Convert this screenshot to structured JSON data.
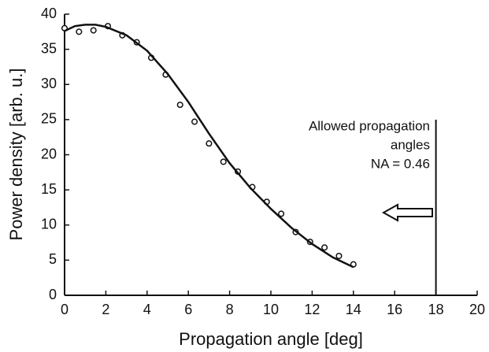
{
  "chart_data": {
    "type": "scatter",
    "xlabel": "Propagation angle [deg]",
    "ylabel": "Power density [arb. u.]",
    "xlim": [
      0,
      20
    ],
    "xticks": [
      0,
      2,
      4,
      6,
      8,
      10,
      12,
      14,
      16,
      18,
      20
    ],
    "ylim": [
      0,
      40
    ],
    "yticks": [
      0,
      5,
      10,
      15,
      20,
      25,
      30,
      35,
      40
    ],
    "series": [
      {
        "kind": "scatter",
        "color": "#111",
        "x": [
          0,
          0.7,
          1.4,
          2.1,
          2.8,
          3.5,
          4.2,
          4.9,
          5.6,
          6.3,
          7.0,
          7.7,
          8.4,
          9.1,
          9.8,
          10.5,
          11.2,
          11.9,
          12.6,
          13.3,
          14.0
        ],
        "values": [
          38.0,
          37.5,
          37.7,
          38.3,
          37.0,
          36.0,
          33.8,
          31.4,
          27.1,
          24.7,
          21.6,
          19.0,
          17.6,
          15.4,
          13.3,
          11.6,
          9.0,
          7.6,
          6.8,
          5.6,
          4.4
        ]
      },
      {
        "kind": "line",
        "color": "#111",
        "x": [
          0,
          0.5,
          1,
          1.5,
          2,
          3,
          4,
          5,
          6,
          7,
          8,
          9,
          10,
          11,
          12,
          13,
          14
        ],
        "values": [
          37.6,
          38.3,
          38.5,
          38.5,
          38.2,
          37.0,
          34.8,
          31.5,
          27.5,
          23.0,
          18.8,
          15.3,
          12.3,
          9.6,
          7.3,
          5.4,
          4.0
        ]
      }
    ],
    "vline_x": 18,
    "annotation": [
      "Allowed propagation",
      "angles",
      "NA = 0.46"
    ]
  }
}
